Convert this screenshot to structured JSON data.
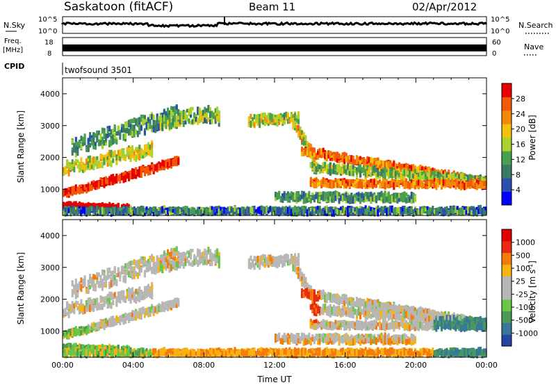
{
  "header": {
    "title": "Saskatoon (fitACF)",
    "beam": "Beam 11",
    "date": "02/Apr/2012"
  },
  "top_panels": {
    "nsky_label": "N.Sky",
    "nsky_tick_hi": "10^5",
    "nsky_tick_lo": "10^0",
    "nsearch_label": "N.Search",
    "freq_label": "Freq.",
    "freq_unit": "[MHz]",
    "freq_tick_hi": "18",
    "freq_tick_lo": "8",
    "nave_tick_hi": "60",
    "nave_tick_lo": "0",
    "nave_label": "Nave",
    "cpid_label": "CPID",
    "cpid_value": "twofsound 3501"
  },
  "colors": {
    "power": [
      "#0000ff",
      "#2b4fb0",
      "#3a7a66",
      "#49a04e",
      "#a8d22e",
      "#f4c10b",
      "#f58a07",
      "#f25a08",
      "#e60000"
    ],
    "velocity": [
      "#2743a4",
      "#37789a",
      "#4a9a57",
      "#66c846",
      "#b7b7b7",
      "#b7b7b7",
      "#f6b312",
      "#f47a0c",
      "#ea2a10",
      "#e00000"
    ]
  },
  "chart_data": [
    {
      "type": "heatmap",
      "name": "power",
      "ylabel": "Slant Range [km]",
      "yticks": [
        1000,
        2000,
        3000,
        4000
      ],
      "ylim": [
        180,
        4500
      ],
      "xlim": [
        0,
        24
      ],
      "colorbar_label": "Power [dB]",
      "colorbar_ticks": [
        "4",
        "8",
        "12",
        "16",
        "20",
        "24",
        "28"
      ]
    },
    {
      "type": "heatmap",
      "name": "velocity",
      "ylabel": "Slant Range [km]",
      "yticks": [
        1000,
        2000,
        3000,
        4000
      ],
      "ylim": [
        180,
        4500
      ],
      "xlim": [
        0,
        24
      ],
      "xlabel": "Time UT",
      "xticks": [
        "00:00",
        "04:00",
        "08:00",
        "12:00",
        "16:00",
        "20:00",
        "00:00"
      ],
      "colorbar_label": "Velocity [m s^-1]",
      "colorbar_ticks": [
        "1000",
        "500",
        "100",
        "25",
        "-25",
        "-100",
        "-500",
        "-1000"
      ]
    }
  ]
}
